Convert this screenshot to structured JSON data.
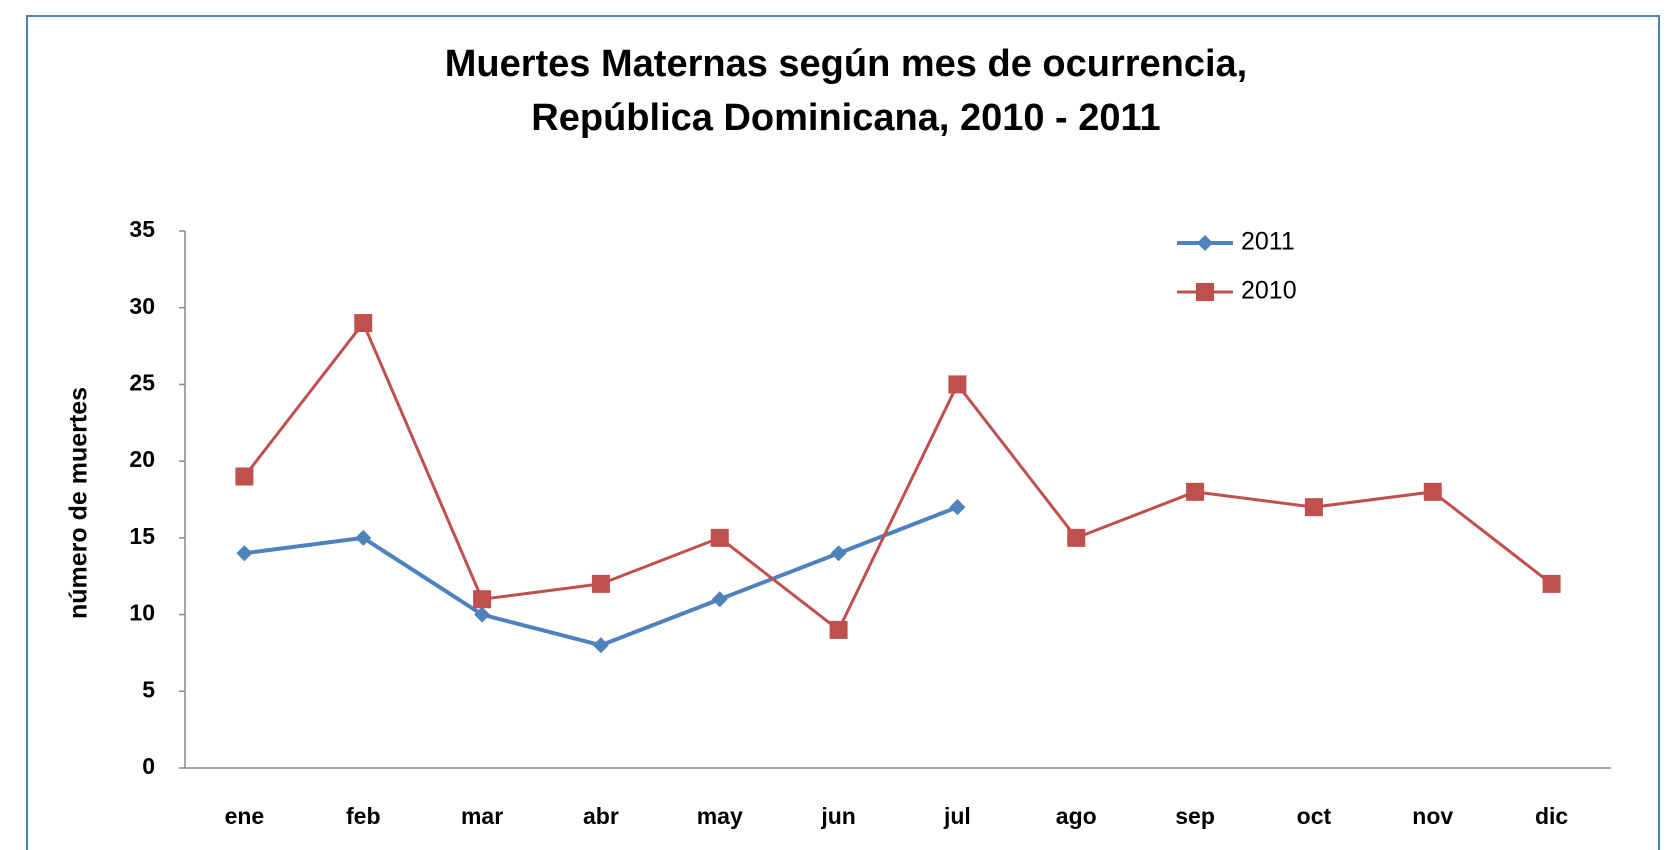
{
  "chart_data": {
    "type": "line",
    "title": [
      "Muertes Maternas según mes de ocurrencia,",
      "República Dominicana, 2010 - 2011"
    ],
    "y_label": "número de muertes",
    "categories": [
      "ene",
      "feb",
      "mar",
      "abr",
      "may",
      "jun",
      "jul",
      "ago",
      "sep",
      "oct",
      "nov",
      "dic"
    ],
    "series": [
      {
        "name": "2011",
        "color": "#4f81bd",
        "marker": "diamond",
        "values": [
          14,
          15,
          10,
          8,
          11,
          14,
          17,
          null,
          null,
          null,
          null,
          null
        ]
      },
      {
        "name": "2010",
        "color": "#c0504d",
        "marker": "square",
        "values": [
          19,
          29,
          11,
          12,
          15,
          9,
          25,
          15,
          18,
          17,
          18,
          12
        ]
      }
    ],
    "ylim": [
      0,
      35
    ],
    "yticks": [
      0,
      5,
      10,
      15,
      20,
      25,
      30,
      35
    ],
    "grid": false,
    "legend": "top-right"
  }
}
